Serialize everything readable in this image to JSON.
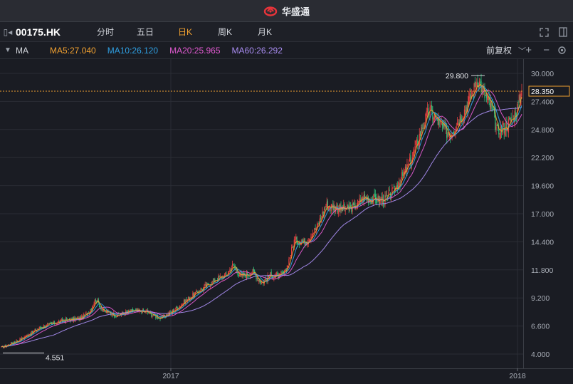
{
  "window": {
    "title": "华盛通"
  },
  "toolbar": {
    "symbol": "00175.HK",
    "tabs": [
      {
        "label": "分时",
        "active": false
      },
      {
        "label": "五日",
        "active": false
      },
      {
        "label": "日K",
        "active": true
      },
      {
        "label": "周K",
        "active": false
      },
      {
        "label": "月K",
        "active": false
      }
    ]
  },
  "ma_bar": {
    "label": "MA",
    "items": [
      {
        "label": "MA5:27.040",
        "color": "#f0a030"
      },
      {
        "label": "MA10:26.120",
        "color": "#2f9ee0"
      },
      {
        "label": "MA20:25.965",
        "color": "#e05ad0"
      },
      {
        "label": "MA60:26.292",
        "color": "#a88cf0"
      }
    ],
    "adjust_label": "前复权"
  },
  "chart_data": {
    "type": "candlestick",
    "yticks": [
      "30.000",
      "27.400",
      "24.800",
      "22.200",
      "19.600",
      "17.000",
      "14.400",
      "11.800",
      "9.200",
      "6.600",
      "4.000"
    ],
    "ylim": [
      4.0,
      30.0
    ],
    "xtick_labels": [
      "2017",
      "2018"
    ],
    "last_price": "28.350",
    "high_label": "29.800",
    "low_label": "4.551",
    "colors": {
      "up": "#e84040",
      "down": "#2fc07a",
      "ma5": "#f0a030",
      "ma10": "#2f9ee0",
      "ma20": "#e05ad0",
      "ma60": "#a88cf0",
      "price_line": "#f0a030"
    }
  }
}
